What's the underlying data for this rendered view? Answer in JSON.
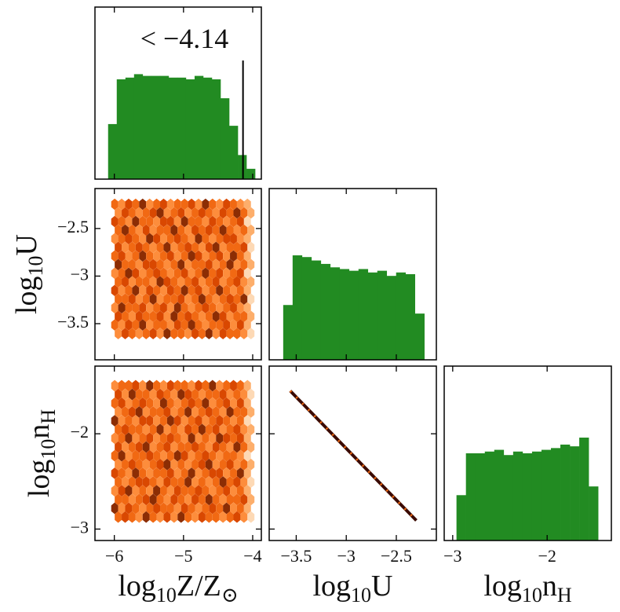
{
  "chart_data": [
    {
      "type": "histogram",
      "color": "#228b22",
      "xlim": [
        -6.28,
        -3.875
      ],
      "ylim": [
        0,
        1
      ],
      "xticks": [
        -6,
        -5,
        -4
      ],
      "xticklabels": false,
      "bins": [
        -6.09,
        -5.965,
        -5.84,
        -5.715,
        -5.59,
        -5.465,
        -5.34,
        -5.215,
        -5.09,
        -4.965,
        -4.84,
        -4.715,
        -4.59,
        -4.465,
        -4.34,
        -4.215,
        -4.09,
        -3.965
      ],
      "values": [
        0.32,
        0.58,
        0.59,
        0.61,
        0.6,
        0.6,
        0.6,
        0.59,
        0.59,
        0.58,
        0.6,
        0.59,
        0.58,
        0.47,
        0.31,
        0.14,
        0.06
      ],
      "vline": -4.14,
      "annotation": "< −4.14"
    },
    {
      "type": "hexbin",
      "xlim": [
        -6.28,
        -3.875
      ],
      "ylim": [
        -3.88,
        -2.08
      ],
      "xticks": [
        -6,
        -5,
        -4
      ],
      "xticklabels": false,
      "yticks": [
        {
          "value": -2.5,
          "label": "−2.5"
        },
        {
          "value": -3,
          "label": "−3"
        },
        {
          "value": -3.5,
          "label": "−3.5"
        }
      ],
      "yticklabels": true,
      "ylabel": [
        "log",
        "10",
        "U"
      ],
      "x_range": [
        -6.02,
        -4.0
      ],
      "y_range": [
        -3.65,
        -2.2
      ],
      "colors": [
        "#fdd9b5",
        "#fdae6b",
        "#fd8d3c",
        "#f16913",
        "#d94801",
        "#8c2d04"
      ],
      "grid": [
        [
          3,
          2,
          4,
          3,
          5,
          2,
          3,
          4,
          2,
          3,
          3,
          4,
          2,
          5,
          3,
          2,
          4,
          3,
          2,
          1
        ],
        [
          2,
          4,
          3,
          2,
          3,
          4,
          5,
          2,
          3,
          4,
          2,
          3,
          4,
          3,
          2,
          4,
          3,
          5,
          3,
          1
        ],
        [
          4,
          3,
          2,
          5,
          3,
          3,
          2,
          4,
          4,
          2,
          5,
          3,
          3,
          2,
          4,
          3,
          2,
          3,
          4,
          0
        ],
        [
          3,
          5,
          3,
          2,
          4,
          2,
          3,
          3,
          5,
          3,
          2,
          4,
          3,
          4,
          3,
          5,
          3,
          2,
          3,
          1
        ],
        [
          2,
          3,
          4,
          3,
          2,
          5,
          4,
          2,
          3,
          4,
          3,
          2,
          5,
          3,
          2,
          3,
          4,
          4,
          2,
          1
        ],
        [
          4,
          2,
          3,
          4,
          3,
          2,
          3,
          5,
          2,
          3,
          4,
          3,
          2,
          4,
          5,
          2,
          3,
          3,
          4,
          0
        ],
        [
          3,
          4,
          2,
          3,
          5,
          3,
          2,
          3,
          4,
          2,
          3,
          5,
          4,
          2,
          3,
          4,
          2,
          5,
          3,
          1
        ],
        [
          5,
          3,
          3,
          2,
          4,
          4,
          3,
          2,
          3,
          5,
          2,
          3,
          3,
          4,
          2,
          3,
          5,
          2,
          3,
          1
        ],
        [
          2,
          3,
          5,
          4,
          2,
          3,
          4,
          3,
          2,
          3,
          4,
          2,
          3,
          5,
          3,
          4,
          2,
          3,
          4,
          0
        ],
        [
          3,
          4,
          2,
          3,
          3,
          2,
          5,
          4,
          3,
          2,
          3,
          4,
          2,
          3,
          4,
          2,
          3,
          4,
          2,
          1
        ],
        [
          4,
          2,
          3,
          5,
          2,
          4,
          3,
          2,
          4,
          3,
          5,
          3,
          4,
          2,
          3,
          5,
          3,
          2,
          3,
          1
        ],
        [
          3,
          3,
          4,
          2,
          3,
          5,
          2,
          3,
          3,
          4,
          2,
          3,
          5,
          3,
          2,
          3,
          4,
          3,
          5,
          0
        ],
        [
          2,
          5,
          3,
          3,
          4,
          2,
          3,
          4,
          2,
          5,
          3,
          2,
          3,
          4,
          3,
          2,
          3,
          4,
          2,
          1
        ],
        [
          4,
          3,
          2,
          4,
          3,
          3,
          4,
          2,
          5,
          3,
          4,
          3,
          2,
          3,
          5,
          4,
          2,
          3,
          3,
          1
        ],
        [
          3,
          2,
          4,
          3,
          5,
          2,
          3,
          3,
          2,
          4,
          3,
          5,
          3,
          2,
          3,
          3,
          4,
          2,
          4,
          1
        ],
        [
          2,
          4,
          3,
          2,
          3,
          4,
          2,
          5,
          3,
          3,
          2,
          4,
          3,
          5,
          2,
          4,
          3,
          3,
          2,
          0
        ]
      ]
    },
    {
      "type": "histogram",
      "color": "#228b22",
      "xlim": [
        -3.77,
        -2.1
      ],
      "ylim": [
        0,
        1
      ],
      "xticks": [
        -3.5,
        -3,
        -2.5
      ],
      "xticklabels": false,
      "bins": [
        -3.63,
        -3.536,
        -3.442,
        -3.348,
        -3.254,
        -3.16,
        -3.066,
        -2.972,
        -2.878,
        -2.784,
        -2.69,
        -2.596,
        -2.502,
        -2.408,
        -2.314,
        -2.22
      ],
      "values": [
        0.32,
        0.61,
        0.6,
        0.58,
        0.56,
        0.54,
        0.53,
        0.52,
        0.53,
        0.51,
        0.52,
        0.49,
        0.51,
        0.5,
        0.27
      ]
    },
    {
      "type": "hexbin",
      "xlim": [
        -6.28,
        -3.875
      ],
      "ylim": [
        -3.12,
        -1.29
      ],
      "xticks": [
        {
          "value": -6,
          "label": "−6"
        },
        {
          "value": -5,
          "label": "−5"
        },
        {
          "value": -4,
          "label": "−4"
        }
      ],
      "xticklabels": true,
      "yticks": [
        {
          "value": -2,
          "label": "−2"
        },
        {
          "value": -3,
          "label": "−3"
        }
      ],
      "yticklabels": true,
      "xlabel": [
        "log",
        "10",
        "Z/Z",
        "⊙"
      ],
      "ylabel": [
        "log",
        "10",
        "n",
        "H"
      ],
      "x_range": [
        -6.02,
        -4.0
      ],
      "y_range": [
        -2.92,
        -1.45
      ],
      "colors": [
        "#fdd9b5",
        "#fdae6b",
        "#fd8d3c",
        "#f16913",
        "#d94801",
        "#8c2d04"
      ],
      "grid": [
        [
          2,
          3,
          3,
          4,
          2,
          5,
          3,
          2,
          4,
          3,
          3,
          2,
          4,
          3,
          5,
          2,
          3,
          4,
          3,
          1
        ],
        [
          4,
          2,
          5,
          3,
          3,
          2,
          4,
          3,
          2,
          5,
          4,
          3,
          2,
          3,
          3,
          4,
          2,
          3,
          2,
          0
        ],
        [
          3,
          4,
          2,
          3,
          4,
          3,
          2,
          5,
          3,
          2,
          3,
          4,
          3,
          5,
          2,
          3,
          4,
          2,
          4,
          1
        ],
        [
          2,
          3,
          4,
          5,
          2,
          3,
          3,
          4,
          2,
          3,
          5,
          2,
          3,
          4,
          3,
          2,
          5,
          3,
          3,
          1
        ],
        [
          5,
          2,
          3,
          2,
          4,
          4,
          2,
          3,
          5,
          4,
          2,
          3,
          4,
          2,
          3,
          4,
          3,
          2,
          3,
          0
        ],
        [
          3,
          4,
          3,
          3,
          2,
          3,
          5,
          2,
          3,
          2,
          4,
          3,
          5,
          3,
          4,
          2,
          3,
          4,
          2,
          1
        ],
        [
          2,
          3,
          5,
          2,
          3,
          4,
          2,
          3,
          4,
          3,
          2,
          5,
          2,
          3,
          2,
          5,
          4,
          3,
          4,
          1
        ],
        [
          4,
          2,
          3,
          4,
          5,
          2,
          3,
          4,
          2,
          3,
          3,
          4,
          3,
          2,
          4,
          3,
          2,
          5,
          3,
          1
        ],
        [
          3,
          5,
          2,
          3,
          3,
          4,
          3,
          2,
          3,
          5,
          4,
          2,
          3,
          4,
          3,
          2,
          3,
          3,
          2,
          0
        ],
        [
          2,
          3,
          4,
          3,
          2,
          3,
          4,
          5,
          2,
          3,
          2,
          3,
          4,
          5,
          2,
          3,
          4,
          2,
          3,
          1
        ],
        [
          4,
          3,
          2,
          5,
          3,
          2,
          3,
          3,
          4,
          2,
          3,
          5,
          2,
          3,
          4,
          4,
          2,
          3,
          5,
          1
        ],
        [
          3,
          2,
          3,
          4,
          4,
          3,
          2,
          4,
          3,
          3,
          5,
          2,
          3,
          2,
          3,
          5,
          3,
          4,
          2,
          0
        ],
        [
          2,
          4,
          5,
          2,
          3,
          2,
          5,
          3,
          2,
          4,
          3,
          3,
          4,
          3,
          2,
          3,
          4,
          2,
          3,
          1
        ],
        [
          3,
          3,
          2,
          3,
          4,
          5,
          3,
          2,
          4,
          3,
          2,
          4,
          3,
          5,
          3,
          2,
          3,
          3,
          4,
          1
        ],
        [
          5,
          2,
          4,
          3,
          2,
          3,
          4,
          3,
          3,
          2,
          4,
          3,
          2,
          3,
          4,
          3,
          5,
          2,
          3,
          1
        ],
        [
          3,
          4,
          3,
          2,
          5,
          3,
          2,
          4,
          2,
          5,
          3,
          2,
          4,
          3,
          3,
          2,
          3,
          4,
          2,
          0
        ]
      ]
    },
    {
      "type": "line",
      "xlim": [
        -3.77,
        -2.1
      ],
      "ylim": [
        -3.12,
        -1.29
      ],
      "xticks": [
        {
          "value": -3.5,
          "label": "−3.5"
        },
        {
          "value": -3,
          "label": "−3"
        },
        {
          "value": -2.5,
          "label": "−2.5"
        }
      ],
      "xticklabels": true,
      "yticks": [
        -2,
        -3
      ],
      "yticklabels": false,
      "xlabel": [
        "log",
        "10",
        "U"
      ],
      "x": [
        -3.56,
        -2.3
      ],
      "y": [
        -1.55,
        -2.91
      ],
      "color": "#3a0a02",
      "point_color": "#f16913"
    },
    {
      "type": "histogram",
      "color": "#228b22",
      "xlim": [
        -3.09,
        -1.32
      ],
      "ylim": [
        0,
        1
      ],
      "xticks": [
        {
          "value": -3,
          "label": "−3"
        },
        {
          "value": -2,
          "label": "−2"
        }
      ],
      "xticklabels": true,
      "xlabel": [
        "log",
        "10",
        "n",
        "H"
      ],
      "bins": [
        -2.96,
        -2.86,
        -2.76,
        -2.66,
        -2.56,
        -2.46,
        -2.36,
        -2.26,
        -2.16,
        -2.06,
        -1.96,
        -1.86,
        -1.76,
        -1.66,
        -1.56,
        -1.46
      ],
      "values": [
        0.26,
        0.5,
        0.5,
        0.51,
        0.52,
        0.49,
        0.51,
        0.5,
        0.51,
        0.52,
        0.53,
        0.55,
        0.54,
        0.59,
        0.31
      ]
    }
  ]
}
